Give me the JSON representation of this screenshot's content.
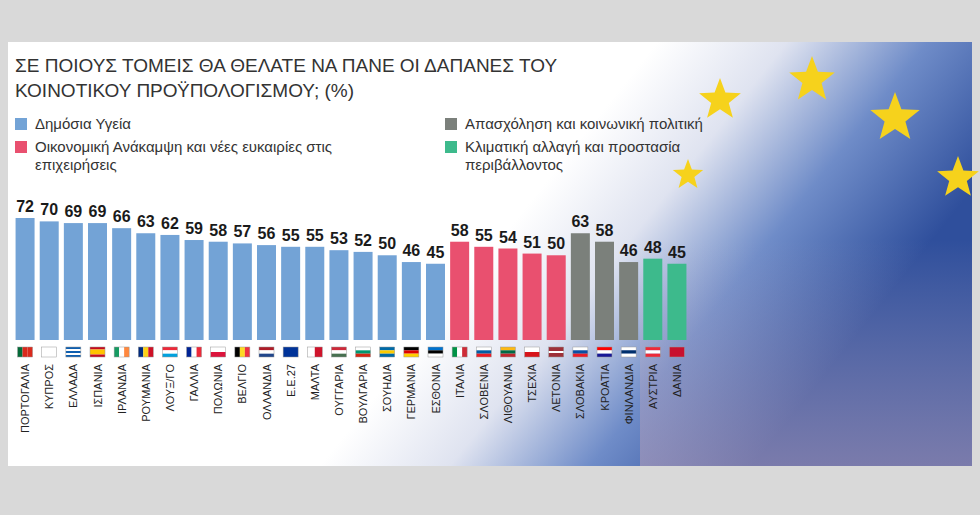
{
  "chart_data": {
    "type": "bar",
    "title": "ΣΕ ΠΟΙΟΥΣ ΤΟΜΕΙΣ ΘΑ ΘΕΛΑΤΕ ΝΑ ΠΑΝΕ ΟΙ ΔΑΠΑΝΕΣ ΤΟΥ ΚΟΙΝΟΤΙΚΟΥ ΠΡΟΫΠΟΛΟΓΙΣΜΟΥ; (%)",
    "categories": [
      "ΠΟΡΤΟΓΑΛΙΑ",
      "ΚΥΠΡΟΣ",
      "ΕΛΛΑΔΑ",
      "ΙΣΠΑΝΙΑ",
      "ΙΡΛΑΝΔΙΑ",
      "ΡΟΥΜΑΝΙΑ",
      "ΛΟΥΞ/ΓΟ",
      "ΓΑΛΛΙΑ",
      "ΠΟΛΩΝΙΑ",
      "ΒΕΛΓΙΟ",
      "ΟΛΛΑΝΔΙΑ",
      "Ε.Ε.27",
      "ΜΑΛΤΑ",
      "ΟΥΓΓΑΡΙΑ",
      "ΒΟΥΛΓΑΡΙΑ",
      "ΣΟΥΗΔΙΑ",
      "ΓΕΡΜΑΝΙΑ",
      "ΕΣΘΟΝΙΑ",
      "ΙΤΑΛΙΑ",
      "ΣΛΟΒΕΝΙΑ",
      "ΛΙΘΟΥΑΝΙΑ",
      "ΤΣΕΧΙΑ",
      "ΛΕΤΟΝΙΑ",
      "ΣΛΟΒΑΚΙΑ",
      "ΚΡΟΑΤΙΑ",
      "ΦΙΝΛΑΝΔΙΑ",
      "ΑΥΣΤΡΙΑ",
      "ΔΑΝΙΑ"
    ],
    "series": [
      {
        "name": "Δημόσια Υγεία",
        "color": "#73a3d6",
        "values": [
          72,
          70,
          69,
          69,
          66,
          63,
          62,
          59,
          58,
          57,
          56,
          55,
          55,
          53,
          52,
          50,
          46,
          45,
          null,
          null,
          null,
          null,
          null,
          null,
          null,
          null,
          null,
          null
        ]
      },
      {
        "name": "Οικονομική Ανάκαμψη και νέες ευκαιρίες στις επιχειρήσεις",
        "color": "#e9506f",
        "values": [
          null,
          null,
          null,
          null,
          null,
          null,
          null,
          null,
          null,
          null,
          null,
          null,
          null,
          null,
          null,
          null,
          null,
          null,
          58,
          55,
          54,
          51,
          50,
          null,
          null,
          null,
          null,
          null
        ]
      },
      {
        "name": "Απασχόληση και κοινωνική πολιτική",
        "color": "#7b807b",
        "values": [
          null,
          null,
          null,
          null,
          null,
          null,
          null,
          null,
          null,
          null,
          null,
          null,
          null,
          null,
          null,
          null,
          null,
          null,
          null,
          null,
          null,
          null,
          null,
          63,
          58,
          46,
          null,
          null
        ]
      },
      {
        "name": "Κλιματική αλλαγή και προστασία περιβάλλοντος",
        "color": "#3dba8c",
        "values": [
          null,
          null,
          null,
          null,
          null,
          null,
          null,
          null,
          null,
          null,
          null,
          null,
          null,
          null,
          null,
          null,
          null,
          null,
          null,
          null,
          null,
          null,
          null,
          null,
          null,
          null,
          48,
          45
        ]
      }
    ],
    "ylim": [
      0,
      72
    ],
    "grid": false,
    "legend": "top-left",
    "data_labels": true,
    "tick_labels": "x"
  }
}
